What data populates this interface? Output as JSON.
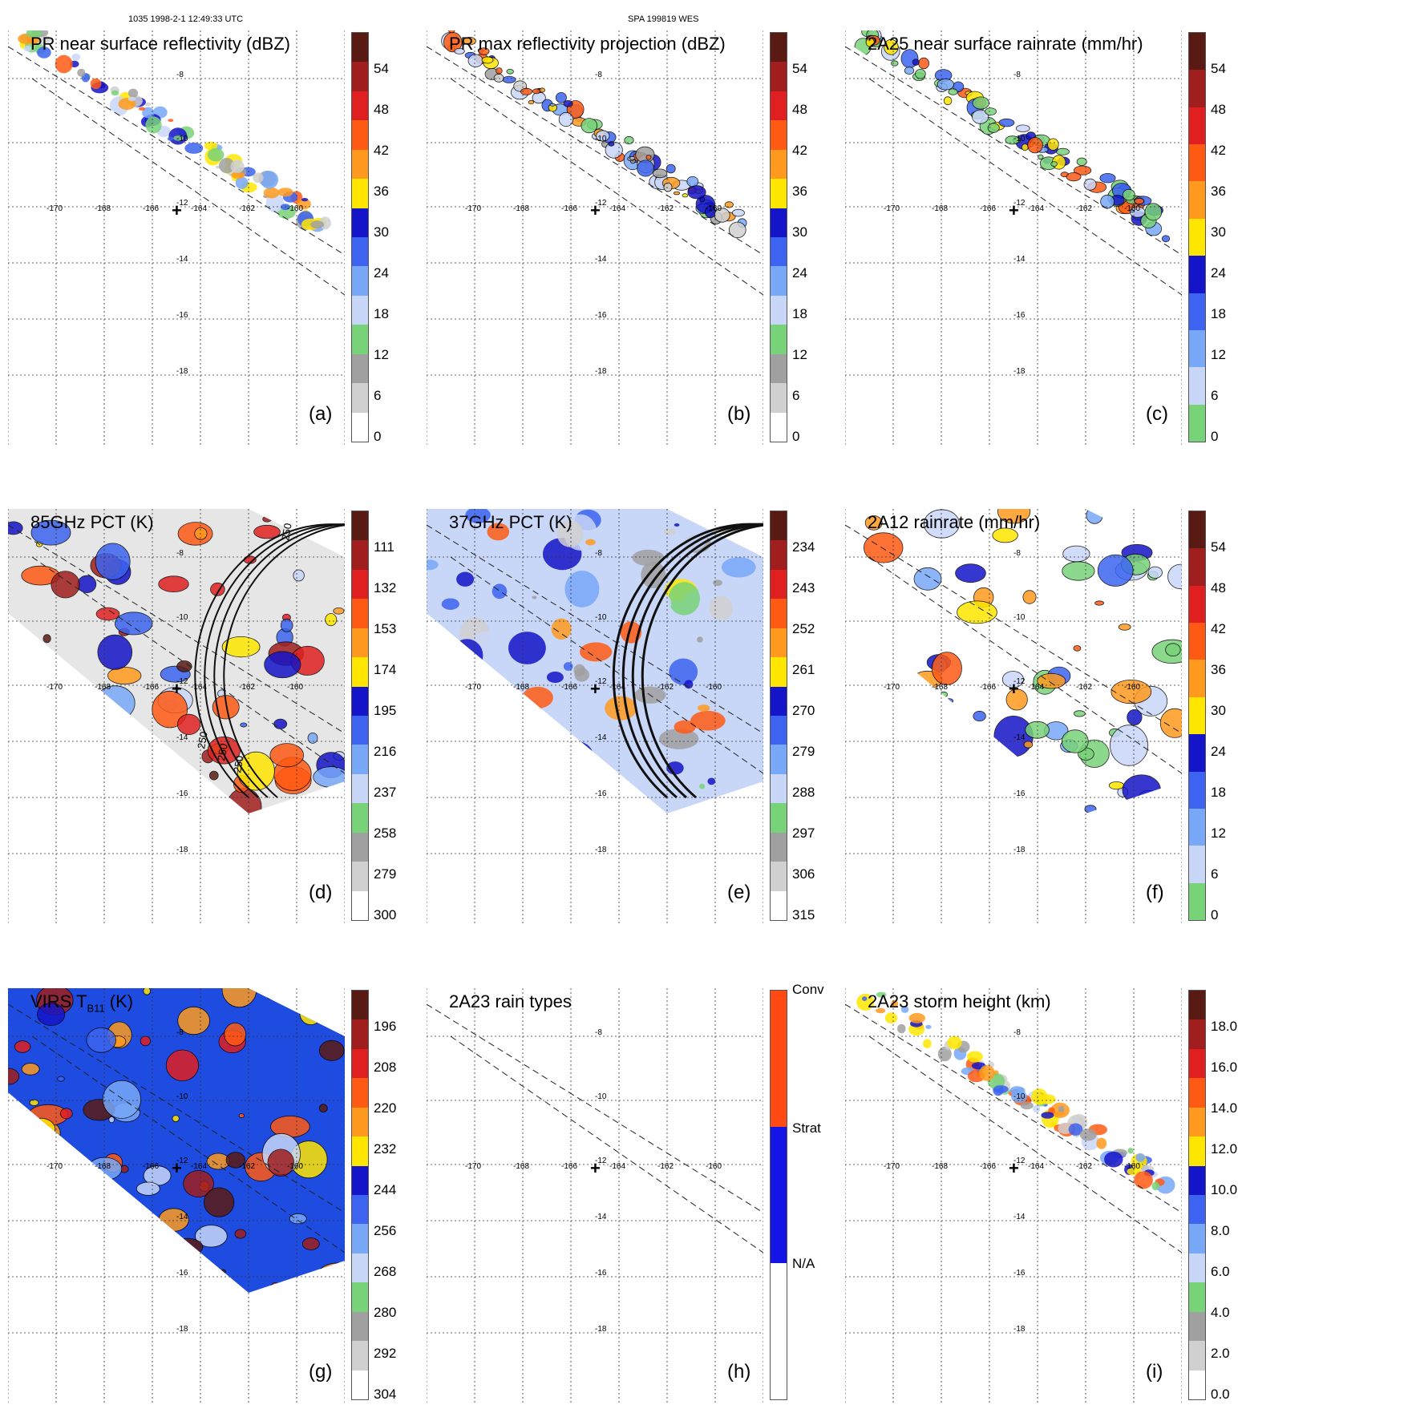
{
  "header": {
    "left": "1035 1998-2-1 12:49:33 UTC",
    "center": "SPA 199819 WES"
  },
  "map_grid": {
    "lon_labels": [
      "-170",
      "-168",
      "-166",
      "-164",
      "-162",
      "-160"
    ],
    "lat_labels": [
      "-8",
      "-10",
      "-12",
      "-14",
      "-16",
      "-18"
    ],
    "center_marker": "+"
  },
  "panels": [
    {
      "id": "a",
      "title": "PR near surface reflectivity (dBZ)",
      "label": "(a)",
      "swath": "narrow",
      "colorbar": {
        "ticks": [
          "54",
          "48",
          "42",
          "36",
          "30",
          "24",
          "18",
          "12",
          "6",
          "0"
        ],
        "style": "dbz"
      }
    },
    {
      "id": "b",
      "title": "PR max reflectivity projection (dBZ)",
      "label": "(b)",
      "swath": "narrow",
      "colorbar": {
        "ticks": [
          "54",
          "48",
          "42",
          "36",
          "30",
          "24",
          "18",
          "12",
          "6",
          "0"
        ],
        "style": "dbz"
      }
    },
    {
      "id": "c",
      "title": "2A25 near surface rainrate (mm/hr)",
      "label": "(c)",
      "swath": "narrow",
      "colorbar": {
        "ticks": [
          "54",
          "48",
          "42",
          "36",
          "30",
          "24",
          "18",
          "12",
          "6",
          "0"
        ],
        "style": "rain"
      }
    },
    {
      "id": "d",
      "title": "85GHz PCT (K)",
      "label": "(d)",
      "swath": "wide",
      "colorbar": {
        "ticks": [
          "111",
          "132",
          "153",
          "174",
          "195",
          "216",
          "237",
          "258",
          "279",
          "300"
        ],
        "style": "dbz"
      },
      "contour_labels": [
        "250",
        "250",
        "250",
        "250"
      ]
    },
    {
      "id": "e",
      "title": "37GHz PCT (K)",
      "label": "(e)",
      "swath": "wide",
      "colorbar": {
        "ticks": [
          "234",
          "243",
          "252",
          "261",
          "270",
          "279",
          "288",
          "297",
          "306",
          "315"
        ],
        "style": "dbz"
      }
    },
    {
      "id": "f",
      "title": "2A12 rainrate (mm/hr)",
      "label": "(f)",
      "swath": "wide",
      "colorbar": {
        "ticks": [
          "54",
          "48",
          "42",
          "36",
          "30",
          "24",
          "18",
          "12",
          "6",
          "0"
        ],
        "style": "rain"
      }
    },
    {
      "id": "g",
      "title": "VIRS T",
      "title_sub": "B11",
      "title_unit": " (K)",
      "label": "(g)",
      "swath": "wide",
      "colorbar": {
        "ticks": [
          "196",
          "208",
          "220",
          "232",
          "244",
          "256",
          "268",
          "280",
          "292",
          "304"
        ],
        "style": "dbz"
      }
    },
    {
      "id": "h",
      "title": "2A23 rain types",
      "label": "(h)",
      "swath": "narrow",
      "colorbar": {
        "ticks": [
          "Conv",
          "Strat",
          "N/A"
        ],
        "style": "types"
      }
    },
    {
      "id": "i",
      "title": "2A23 storm height (km)",
      "label": "(i)",
      "swath": "narrow",
      "colorbar": {
        "ticks": [
          "18.0",
          "16.0",
          "14.0",
          "12.0",
          "10.0",
          "8.0",
          "6.0",
          "4.0",
          "2.0",
          "0.0"
        ],
        "style": "dbz"
      }
    }
  ],
  "colors": {
    "dbz": [
      "#5a1a14",
      "#a01e1e",
      "#e02020",
      "#ff5a14",
      "#ff9a1e",
      "#ffe600",
      "#1414c8",
      "#3c64f0",
      "#78a8f8",
      "#c8d6f8",
      "#78d278",
      "#a0a0a0",
      "#d0d0d0",
      "#ffffff"
    ],
    "rain": [
      "#5a1a14",
      "#a01e1e",
      "#e02020",
      "#ff5a14",
      "#ff9a1e",
      "#ffe600",
      "#1414c8",
      "#3c64f0",
      "#78a8f8",
      "#c8d6f8",
      "#78d278"
    ],
    "types": [
      "#ff4a14",
      "#1414e6",
      "#ffffff"
    ]
  }
}
